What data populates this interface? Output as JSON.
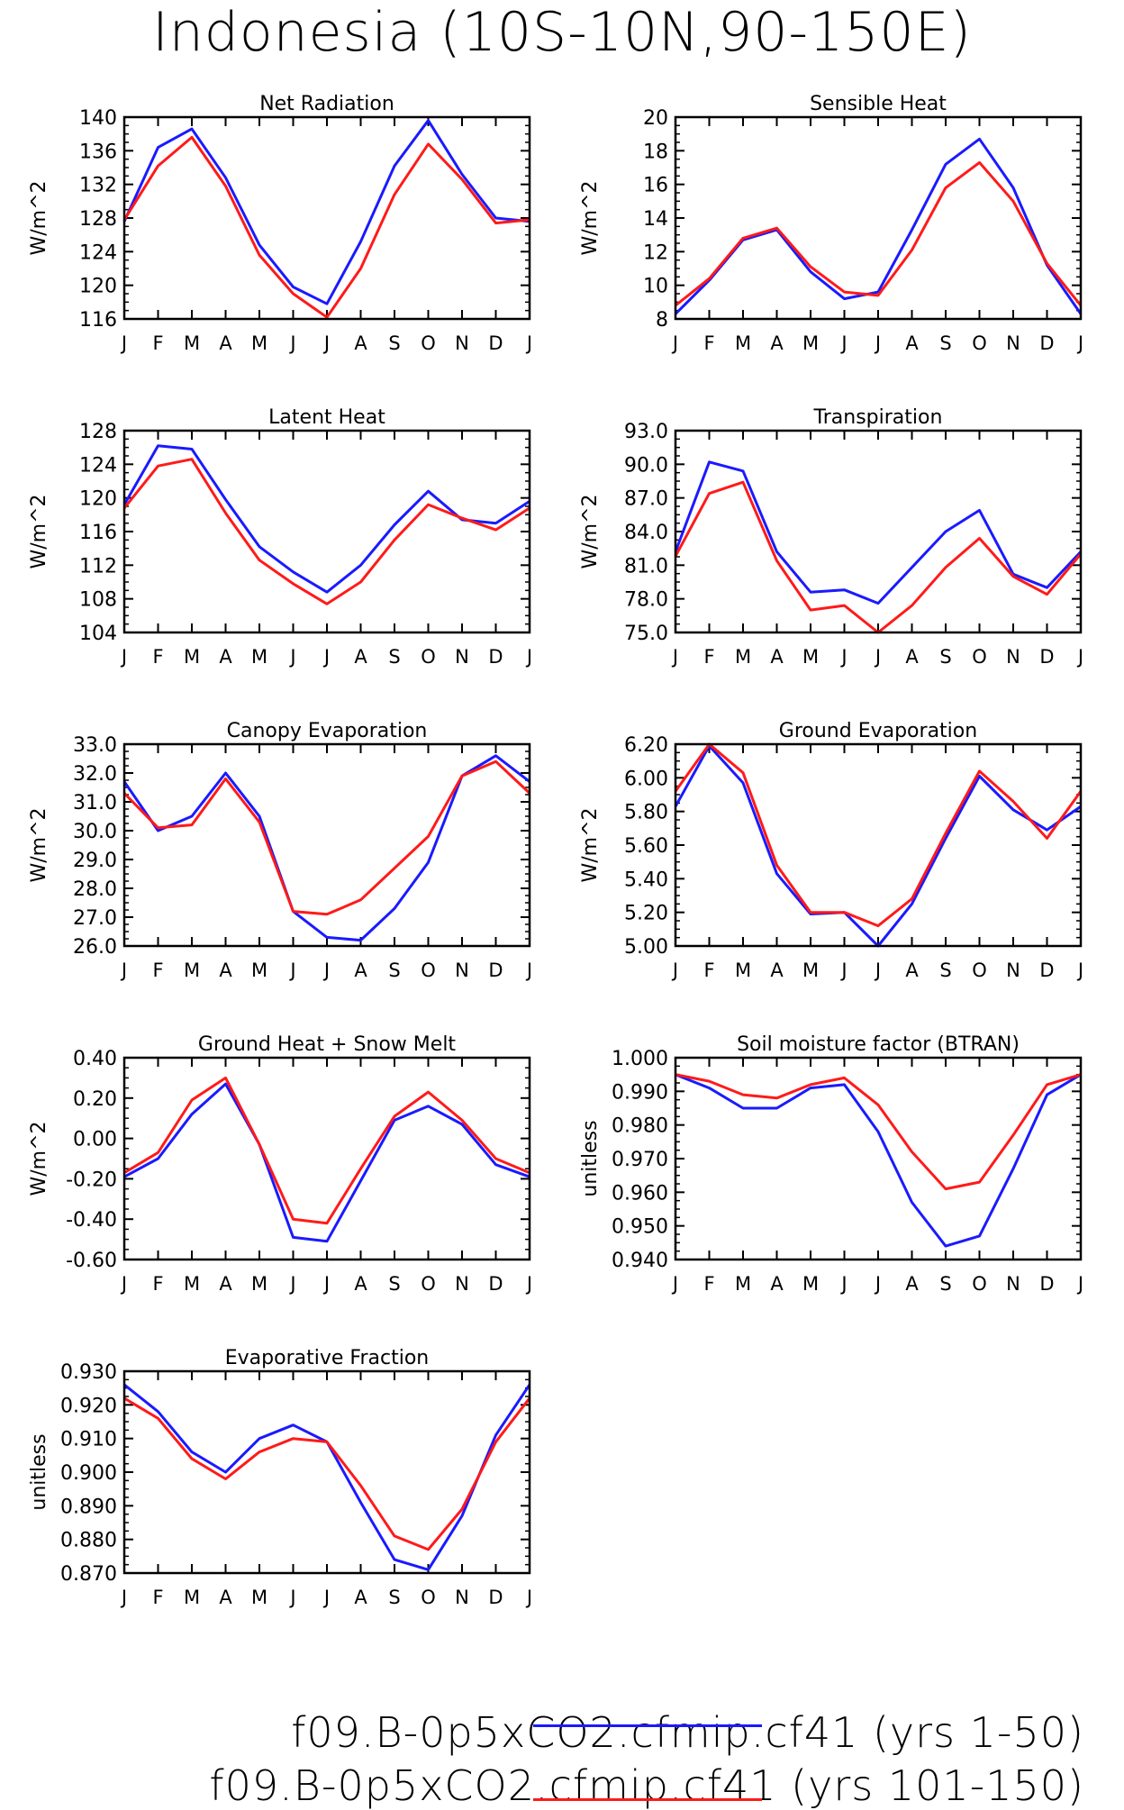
{
  "page": {
    "title": "Indonesia (10S-10N,90-150E)"
  },
  "months": [
    "J",
    "F",
    "M",
    "A",
    "M",
    "J",
    "J",
    "A",
    "S",
    "O",
    "N",
    "D",
    "J"
  ],
  "legend": [
    {
      "name": "f09.B-0p5xCO2.cfmip.cf41 (yrs 1-50)",
      "color": "#1a1aff"
    },
    {
      "name": "f09.B-0p5xCO2.cfmip.cf41 (yrs 101-150)",
      "color": "#ff1a1a"
    }
  ],
  "chart_data": [
    {
      "type": "line",
      "title": "Net Radiation",
      "ylabel": "W/m^2",
      "ylim": [
        116,
        140
      ],
      "yticks": [
        "116",
        "120",
        "124",
        "128",
        "132",
        "136",
        "140"
      ],
      "series": [
        {
          "name": "f09.B-0p5xCO2.cfmip.cf41 (yrs 1-50)",
          "color": "#1a1aff",
          "values": [
            127.6,
            136.4,
            138.6,
            132.8,
            124.8,
            119.8,
            117.8,
            125.2,
            134.2,
            139.6,
            133.2,
            128.0,
            127.6
          ]
        },
        {
          "name": "f09.B-0p5xCO2.cfmip.cf41 (yrs 101-150)",
          "color": "#ff1a1a",
          "values": [
            127.8,
            134.2,
            137.6,
            131.8,
            123.6,
            119.0,
            116.2,
            122.0,
            130.8,
            136.8,
            132.6,
            127.4,
            127.8
          ]
        }
      ]
    },
    {
      "type": "line",
      "title": "Sensible Heat",
      "ylabel": "W/m^2",
      "ylim": [
        8,
        20
      ],
      "yticks": [
        "8",
        "10",
        "12",
        "14",
        "16",
        "18",
        "20"
      ],
      "series": [
        {
          "name": "f09.B-0p5xCO2.cfmip.cf41 (yrs 1-50)",
          "color": "#1a1aff",
          "values": [
            8.3,
            10.3,
            12.7,
            13.3,
            10.8,
            9.2,
            9.6,
            13.3,
            17.2,
            18.7,
            15.8,
            11.2,
            8.3
          ]
        },
        {
          "name": "f09.B-0p5xCO2.cfmip.cf41 (yrs 101-150)",
          "color": "#ff1a1a",
          "values": [
            8.8,
            10.4,
            12.8,
            13.4,
            11.1,
            9.6,
            9.4,
            12.1,
            15.8,
            17.3,
            15.0,
            11.3,
            8.8
          ]
        }
      ]
    },
    {
      "type": "line",
      "title": "Latent Heat",
      "ylabel": "W/m^2",
      "ylim": [
        104,
        128
      ],
      "yticks": [
        "104",
        "108",
        "112",
        "116",
        "120",
        "124",
        "128"
      ],
      "series": [
        {
          "name": "f09.B-0p5xCO2.cfmip.cf41 (yrs 1-50)",
          "color": "#1a1aff",
          "values": [
            119.2,
            126.2,
            125.8,
            119.8,
            114.2,
            111.2,
            108.8,
            112.0,
            116.8,
            120.8,
            117.4,
            117.0,
            119.6
          ]
        },
        {
          "name": "f09.B-0p5xCO2.cfmip.cf41 (yrs 101-150)",
          "color": "#ff1a1a",
          "values": [
            118.8,
            123.8,
            124.6,
            118.2,
            112.6,
            109.8,
            107.4,
            110.0,
            115.0,
            119.2,
            117.6,
            116.2,
            118.8
          ]
        }
      ]
    },
    {
      "type": "line",
      "title": "Transpiration",
      "ylabel": "W/m^2",
      "ylim": [
        75.0,
        93.0
      ],
      "yticks": [
        "75.0",
        "78.0",
        "81.0",
        "84.0",
        "87.0",
        "90.0",
        "93.0"
      ],
      "series": [
        {
          "name": "f09.B-0p5xCO2.cfmip.cf41 (yrs 1-50)",
          "color": "#1a1aff",
          "values": [
            82.2,
            90.2,
            89.4,
            82.2,
            78.6,
            78.8,
            77.6,
            80.8,
            84.0,
            85.9,
            80.2,
            79.0,
            82.2
          ]
        },
        {
          "name": "f09.B-0p5xCO2.cfmip.cf41 (yrs 101-150)",
          "color": "#ff1a1a",
          "values": [
            81.8,
            87.4,
            88.4,
            81.4,
            77.0,
            77.4,
            75.0,
            77.4,
            80.8,
            83.4,
            80.0,
            78.4,
            82.0
          ]
        }
      ]
    },
    {
      "type": "line",
      "title": "Canopy Evaporation",
      "ylabel": "W/m^2",
      "ylim": [
        26.0,
        33.0
      ],
      "yticks": [
        "26.0",
        "27.0",
        "28.0",
        "29.0",
        "30.0",
        "31.0",
        "32.0",
        "33.0"
      ],
      "series": [
        {
          "name": "f09.B-0p5xCO2.cfmip.cf41 (yrs 1-50)",
          "color": "#1a1aff",
          "values": [
            31.7,
            30.0,
            30.5,
            32.0,
            30.5,
            27.2,
            26.3,
            26.2,
            27.3,
            28.9,
            31.9,
            32.6,
            31.7
          ]
        },
        {
          "name": "f09.B-0p5xCO2.cfmip.cf41 (yrs 101-150)",
          "color": "#ff1a1a",
          "values": [
            31.3,
            30.1,
            30.2,
            31.8,
            30.3,
            27.2,
            27.1,
            27.6,
            28.7,
            29.8,
            31.9,
            32.4,
            31.3
          ]
        }
      ]
    },
    {
      "type": "line",
      "title": "Ground Evaporation",
      "ylabel": "W/m^2",
      "ylim": [
        5.0,
        6.2
      ],
      "yticks": [
        "5.00",
        "5.20",
        "5.40",
        "5.60",
        "5.80",
        "6.00",
        "6.20"
      ],
      "series": [
        {
          "name": "f09.B-0p5xCO2.cfmip.cf41 (yrs 1-50)",
          "color": "#1a1aff",
          "values": [
            5.83,
            6.19,
            5.97,
            5.43,
            5.19,
            5.2,
            5.0,
            5.25,
            5.64,
            6.01,
            5.81,
            5.69,
            5.83
          ]
        },
        {
          "name": "f09.B-0p5xCO2.cfmip.cf41 (yrs 101-150)",
          "color": "#ff1a1a",
          "values": [
            5.92,
            6.2,
            6.03,
            5.48,
            5.2,
            5.2,
            5.12,
            5.28,
            5.67,
            6.04,
            5.86,
            5.64,
            5.92
          ]
        }
      ]
    },
    {
      "type": "line",
      "title": "Ground Heat + Snow Melt",
      "ylabel": "W/m^2",
      "ylim": [
        -0.6,
        0.4
      ],
      "yticks": [
        "-0.60",
        "-0.40",
        "-0.20",
        "0.00",
        "0.20",
        "0.40"
      ],
      "series": [
        {
          "name": "f09.B-0p5xCO2.cfmip.cf41 (yrs 1-50)",
          "color": "#1a1aff",
          "values": [
            -0.19,
            -0.1,
            0.12,
            0.27,
            -0.03,
            -0.49,
            -0.51,
            -0.21,
            0.09,
            0.16,
            0.07,
            -0.13,
            -0.19
          ]
        },
        {
          "name": "f09.B-0p5xCO2.cfmip.cf41 (yrs 101-150)",
          "color": "#ff1a1a",
          "values": [
            -0.17,
            -0.07,
            0.19,
            0.3,
            -0.03,
            -0.4,
            -0.42,
            -0.15,
            0.11,
            0.23,
            0.09,
            -0.1,
            -0.17
          ]
        }
      ]
    },
    {
      "type": "line",
      "title": "Soil moisture factor (BTRAN)",
      "ylabel": "unitless",
      "ylim": [
        0.94,
        1.0
      ],
      "yticks": [
        "0.940",
        "0.950",
        "0.960",
        "0.970",
        "0.980",
        "0.990",
        "1.000"
      ],
      "series": [
        {
          "name": "f09.B-0p5xCO2.cfmip.cf41 (yrs 1-50)",
          "color": "#1a1aff",
          "values": [
            0.995,
            0.991,
            0.985,
            0.985,
            0.991,
            0.992,
            0.978,
            0.957,
            0.944,
            0.947,
            0.967,
            0.989,
            0.995
          ]
        },
        {
          "name": "f09.B-0p5xCO2.cfmip.cf41 (yrs 101-150)",
          "color": "#ff1a1a",
          "values": [
            0.995,
            0.993,
            0.989,
            0.988,
            0.992,
            0.994,
            0.986,
            0.972,
            0.961,
            0.963,
            0.977,
            0.992,
            0.995
          ]
        }
      ]
    },
    {
      "type": "line",
      "title": "Evaporative Fraction",
      "ylabel": "unitless",
      "ylim": [
        0.87,
        0.93
      ],
      "yticks": [
        "0.870",
        "0.880",
        "0.890",
        "0.900",
        "0.910",
        "0.920",
        "0.930"
      ],
      "series": [
        {
          "name": "f09.B-0p5xCO2.cfmip.cf41 (yrs 1-50)",
          "color": "#1a1aff",
          "values": [
            0.926,
            0.918,
            0.906,
            0.9,
            0.91,
            0.914,
            0.909,
            0.891,
            0.874,
            0.871,
            0.887,
            0.911,
            0.926
          ]
        },
        {
          "name": "f09.B-0p5xCO2.cfmip.cf41 (yrs 101-150)",
          "color": "#ff1a1a",
          "values": [
            0.922,
            0.916,
            0.904,
            0.898,
            0.906,
            0.91,
            0.909,
            0.896,
            0.881,
            0.877,
            0.889,
            0.909,
            0.922
          ]
        }
      ]
    }
  ]
}
